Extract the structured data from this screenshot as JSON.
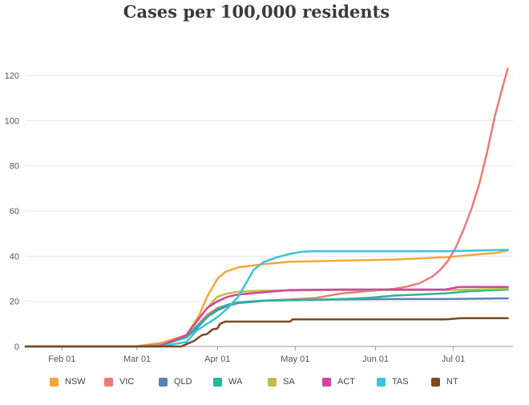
{
  "chart_data": {
    "type": "line",
    "title": "Cases per 100,000 residents",
    "xlabel": "",
    "ylabel": "",
    "x_unit": "day of year 2020",
    "xlim": [
      18,
      206
    ],
    "ylim": [
      0,
      125
    ],
    "y_ticks": [
      0,
      20,
      40,
      60,
      80,
      100,
      120
    ],
    "x_ticks": [
      {
        "label": "Feb 01",
        "day": 32
      },
      {
        "label": "Mar 01",
        "day": 61
      },
      {
        "label": "Apr 01",
        "day": 92
      },
      {
        "label": "May 01",
        "day": 122
      },
      {
        "label": "Jun 01",
        "day": 153
      },
      {
        "label": "Jul 01",
        "day": 183
      }
    ],
    "grid": "horizontal",
    "legend_position": "bottom",
    "series": [
      {
        "name": "NSW",
        "color": "#f5a73b",
        "x": [
          18,
          60,
          70,
          80,
          85,
          88,
          92,
          95,
          100,
          110,
          120,
          140,
          160,
          180,
          200,
          204
        ],
        "y": [
          0,
          0,
          1.5,
          5,
          14,
          22,
          30,
          33,
          35,
          36.5,
          37.5,
          38,
          38.5,
          39.5,
          41.5,
          42.5
        ]
      },
      {
        "name": "VIC",
        "color": "#f07a74",
        "x": [
          18,
          60,
          70,
          80,
          84,
          88,
          92,
          96,
          100,
          110,
          120,
          130,
          140,
          150,
          160,
          165,
          170,
          175,
          178,
          181,
          184,
          187,
          190,
          193,
          196,
          199,
          202,
          204
        ],
        "y": [
          0,
          0,
          1,
          4,
          9,
          14,
          17,
          18.5,
          19.5,
          20.3,
          20.8,
          21.5,
          23.5,
          24.5,
          25.5,
          26.5,
          28,
          31,
          34,
          38,
          44,
          52,
          61,
          72,
          86,
          102,
          115,
          123
        ]
      },
      {
        "name": "QLD",
        "color": "#5b82b5",
        "x": [
          18,
          60,
          70,
          80,
          84,
          88,
          92,
          96,
          100,
          110,
          120,
          140,
          160,
          180,
          204
        ],
        "y": [
          0,
          0,
          0.5,
          4,
          8,
          13,
          16,
          18,
          19.2,
          20.2,
          20.5,
          20.8,
          21,
          21,
          21.3
        ]
      },
      {
        "name": "WA",
        "color": "#27b59c",
        "x": [
          18,
          60,
          70,
          80,
          84,
          88,
          92,
          96,
          100,
          110,
          120,
          140,
          150,
          160,
          170,
          180,
          190,
          200,
          204
        ],
        "y": [
          0,
          0,
          0.5,
          4,
          9,
          13,
          16.5,
          18.5,
          19.5,
          20.3,
          20.5,
          21,
          21.5,
          22.5,
          23,
          23.5,
          24.5,
          25,
          25.2
        ]
      },
      {
        "name": "SA",
        "color": "#c2bc45",
        "x": [
          18,
          60,
          70,
          80,
          84,
          88,
          92,
          96,
          100,
          105,
          110,
          120,
          140,
          160,
          180,
          200,
          204
        ],
        "y": [
          0,
          0,
          0.5,
          5,
          11,
          17,
          22,
          23.5,
          24.2,
          24.5,
          24.7,
          24.8,
          25,
          25,
          25,
          25.5,
          25.8
        ]
      },
      {
        "name": "ACT",
        "color": "#d2459d",
        "x": [
          18,
          60,
          70,
          80,
          84,
          88,
          92,
          96,
          100,
          110,
          120,
          140,
          160,
          180,
          185,
          190,
          204
        ],
        "y": [
          0,
          0,
          0.3,
          5,
          11,
          17,
          20,
          22,
          23,
          24,
          25,
          25.2,
          25.2,
          25.2,
          26.3,
          26.4,
          26.4
        ]
      },
      {
        "name": "TAS",
        "color": "#40c1d6",
        "x": [
          18,
          60,
          70,
          80,
          84,
          88,
          92,
          96,
          100,
          103,
          106,
          110,
          115,
          120,
          125,
          130,
          140,
          160,
          180,
          204
        ],
        "y": [
          0,
          0,
          0,
          2,
          7,
          10,
          13,
          17,
          22,
          28,
          34,
          37.5,
          39.5,
          41,
          42,
          42.2,
          42.2,
          42.2,
          42.2,
          42.8
        ]
      },
      {
        "name": "NT",
        "color": "#7a4a1e",
        "x": [
          18,
          78,
          80,
          83,
          86,
          88,
          90,
          92,
          93,
          95,
          100,
          110,
          120,
          121,
          140,
          160,
          180,
          186,
          190,
          204
        ],
        "y": [
          0,
          0,
          1,
          2.5,
          5,
          5.5,
          7.5,
          8,
          10,
          11,
          11,
          11,
          11,
          12,
          12,
          12,
          12,
          12.5,
          12.5,
          12.5
        ]
      }
    ]
  }
}
